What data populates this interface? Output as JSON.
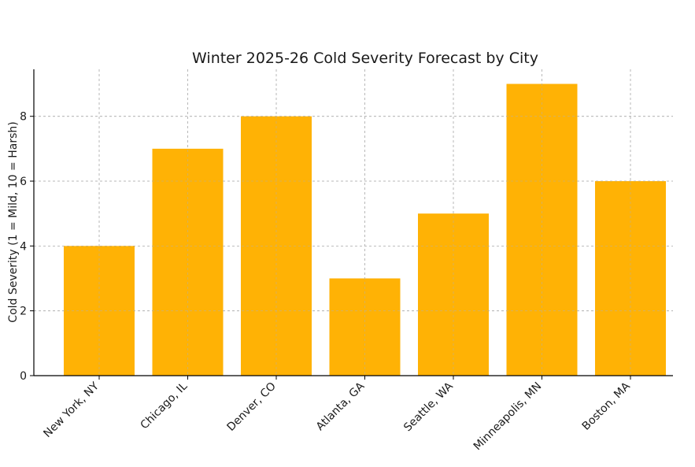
{
  "chart_data": {
    "type": "bar",
    "title": "Winter 2025-26 Cold Severity Forecast by City",
    "xlabel": "",
    "ylabel": "Cold Severity (1 = Mild, 10 = Harsh)",
    "categories": [
      "New York, NY",
      "Chicago, IL",
      "Denver, CO",
      "Atlanta, GA",
      "Seattle, WA",
      "Minneapolis, MN",
      "Boston, MA"
    ],
    "values": [
      4,
      7,
      8,
      3,
      5,
      9,
      6
    ],
    "ylim": [
      0,
      9.45
    ],
    "yticks": [
      0,
      2,
      4,
      6,
      8
    ],
    "grid": true,
    "bar_color": "#ffb000",
    "legend": "none"
  }
}
